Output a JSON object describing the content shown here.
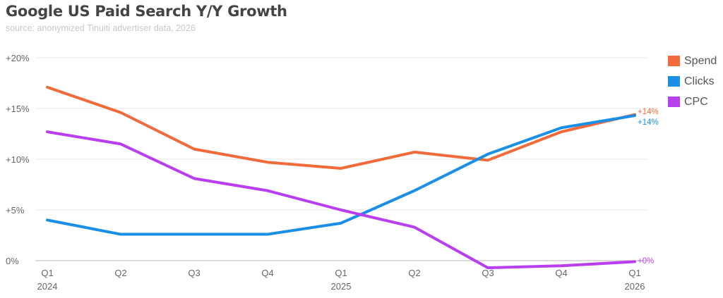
{
  "title": "Google US Paid Search Y/Y Growth",
  "subtitle": "source: anonymized Tinuiti advertiser data, 2026",
  "chart_data": {
    "type": "line",
    "title": "Google US Paid Search Y/Y Growth",
    "subtitle": "source: anonymized Tinuiti advertiser data, 2026",
    "categories": [
      "Q1\n2024",
      "Q2",
      "Q3",
      "Q4",
      "Q1\n2025",
      "Q2",
      "Q3",
      "Q4",
      "Q1\n2026"
    ],
    "x_tick_labels": [
      [
        "Q1",
        "2024"
      ],
      [
        "Q2",
        ""
      ],
      [
        "Q3",
        ""
      ],
      [
        "Q4",
        ""
      ],
      [
        "Q1",
        "2025"
      ],
      [
        "Q2",
        ""
      ],
      [
        "Q3",
        ""
      ],
      [
        "Q4",
        ""
      ],
      [
        "Q1",
        "2026"
      ]
    ],
    "y_ticks": [
      0,
      5,
      10,
      15,
      20
    ],
    "y_tick_labels": [
      "0%",
      "+5%",
      "+10%",
      "+15%",
      "+20%"
    ],
    "ylim": [
      0,
      20
    ],
    "grid": true,
    "legend": "right",
    "series": [
      {
        "name": "Spend",
        "color": "#f26a3a",
        "values": [
          17.1,
          14.6,
          11.0,
          9.7,
          9.1,
          10.7,
          9.9,
          12.7,
          14.4
        ],
        "end_label": "+14%"
      },
      {
        "name": "Clicks",
        "color": "#1a8fe8",
        "values": [
          4.0,
          2.6,
          2.6,
          2.6,
          3.7,
          6.9,
          10.5,
          13.1,
          14.3
        ],
        "end_label": "+14%"
      },
      {
        "name": "CPC",
        "color": "#b83ef0",
        "values": [
          12.7,
          11.5,
          8.1,
          6.9,
          5.0,
          3.3,
          -0.7,
          -0.5,
          -0.1
        ],
        "end_label": "+0%"
      }
    ]
  }
}
